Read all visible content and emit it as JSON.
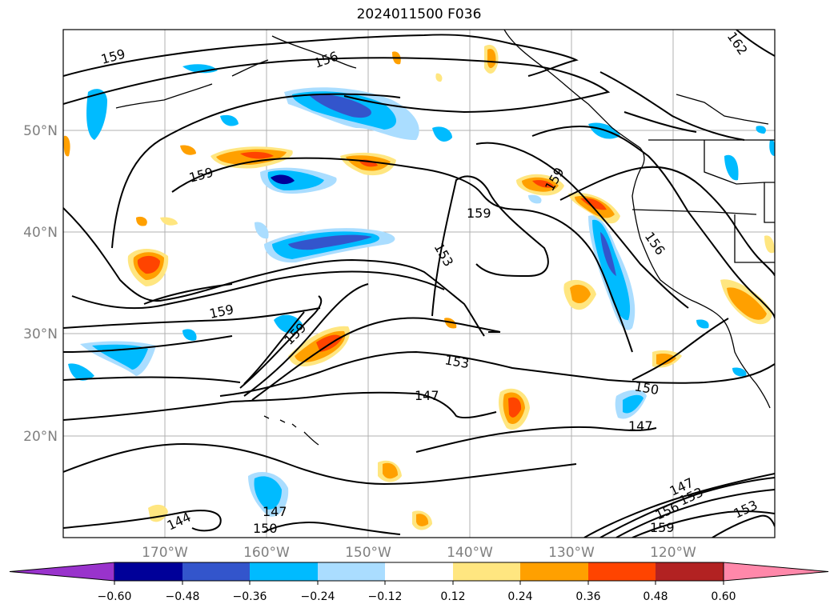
{
  "title": "2024011500 F036",
  "latitudes": [
    "50°N",
    "40°N",
    "30°N",
    "20°N"
  ],
  "longitudes": [
    "170°W",
    "160°W",
    "150°W",
    "140°W",
    "130°W",
    "120°W"
  ],
  "colorbar": {
    "ticks": [
      "−0.60",
      "−0.48",
      "−0.36",
      "−0.24",
      "−0.12",
      "0.12",
      "0.24",
      "0.36",
      "0.48",
      "0.60"
    ],
    "colors": [
      "#9933cc",
      "#000099",
      "#3355cc",
      "#00bbff",
      "#aaddff",
      "#ffffff",
      "#ffe680",
      "#ffa000",
      "#ff4400",
      "#b22222",
      "#ff88aa"
    ]
  },
  "contour_labels": [
    "159",
    "156",
    "159",
    "159",
    "159",
    "153",
    "156",
    "159",
    "159",
    "153",
    "147",
    "150",
    "147",
    "144",
    "147",
    "150",
    "147",
    "153",
    "156",
    "159",
    "153",
    "162"
  ]
}
